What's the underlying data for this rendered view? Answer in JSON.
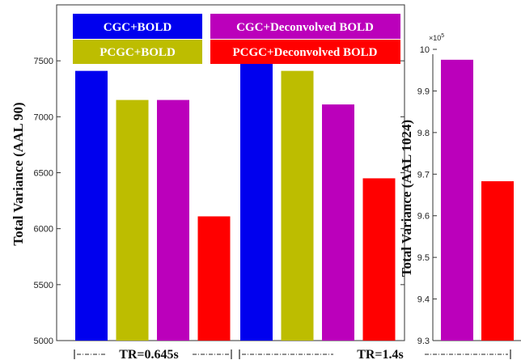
{
  "colors": {
    "cgc_bold": "#0000ee",
    "pcgc_bold": "#bdbd00",
    "cgc_deconv": "#bb00bb",
    "pcgc_deconv": "#ff0000"
  },
  "chart_data": [
    {
      "type": "bar",
      "ylabel": "Total Variance (AAL 90)",
      "ylim": [
        5000,
        8000
      ],
      "yticks": [
        "5000",
        "5500",
        "6000",
        "6500",
        "7000",
        "7500"
      ],
      "legend": {
        "placement": "top",
        "entries": [
          "CGC+BOLD",
          "PCGC+BOLD",
          "CGC+Deconvolved BOLD",
          "PCGC+Deconvolved BOLD"
        ]
      },
      "groups": [
        {
          "label": "TR=0.645s",
          "values": [
            7410,
            7150,
            7150,
            6110
          ]
        },
        {
          "label": "TR=1.4s",
          "values": [
            7640,
            7410,
            7110,
            6450
          ]
        }
      ]
    },
    {
      "type": "bar",
      "ylabel": "Total Variance (AAL 1024)",
      "exponent": "×10",
      "exponent_power": "5",
      "ylim": [
        9.3,
        10.0
      ],
      "yticks": [
        "9.3",
        "9.4",
        "9.5",
        "9.6",
        "9.7",
        "9.8",
        "9.9",
        "10"
      ],
      "series": [
        {
          "name": "CGC+Deconvolved BOLD",
          "value": 9.975
        },
        {
          "name": "PCGC+Deconvolved BOLD",
          "value": 9.683
        }
      ]
    }
  ]
}
